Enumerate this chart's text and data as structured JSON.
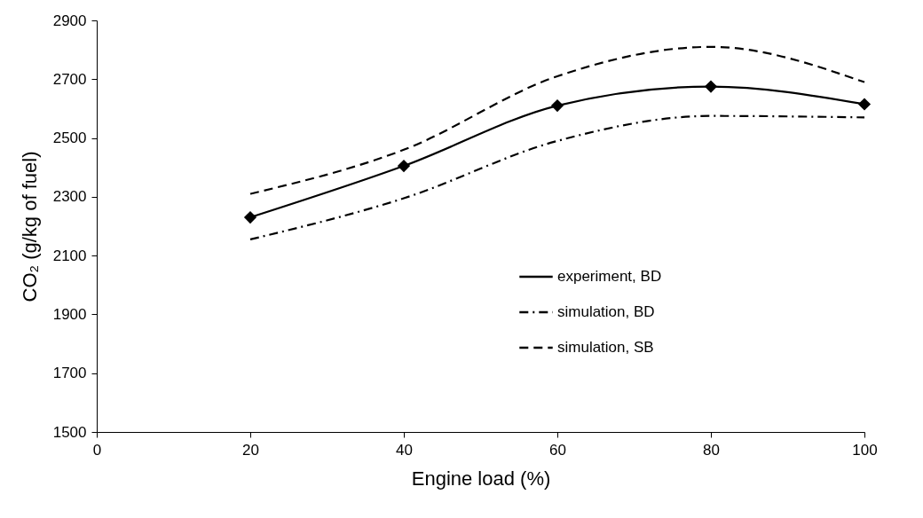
{
  "chart_data": {
    "type": "line",
    "xlabel": "Engine load (%)",
    "ylabel": "CO₂ (g/kg of fuel)",
    "x": [
      20,
      40,
      60,
      80,
      100
    ],
    "series": [
      {
        "name": "experiment, BD",
        "color": "#000000",
        "marker": "diamond",
        "line_style": "solid",
        "values": [
          2230,
          2405,
          2610,
          2675,
          2615
        ]
      },
      {
        "name": "simulation, BD",
        "color": "#000000",
        "marker": "none",
        "line_style": "dashdot",
        "values": [
          2155,
          2295,
          2490,
          2575,
          2570
        ]
      },
      {
        "name": "simulation, SB",
        "color": "#000000",
        "marker": "none",
        "line_style": "dashed",
        "values": [
          2310,
          2460,
          2710,
          2810,
          2690
        ]
      }
    ],
    "xlim": [
      0,
      100
    ],
    "xticks": [
      0,
      20,
      40,
      60,
      80,
      100
    ],
    "ylim": [
      1500,
      2900
    ],
    "yticks": [
      1500,
      1700,
      1900,
      2100,
      2300,
      2500,
      2700,
      2900
    ],
    "grid": false,
    "legend": "right"
  }
}
